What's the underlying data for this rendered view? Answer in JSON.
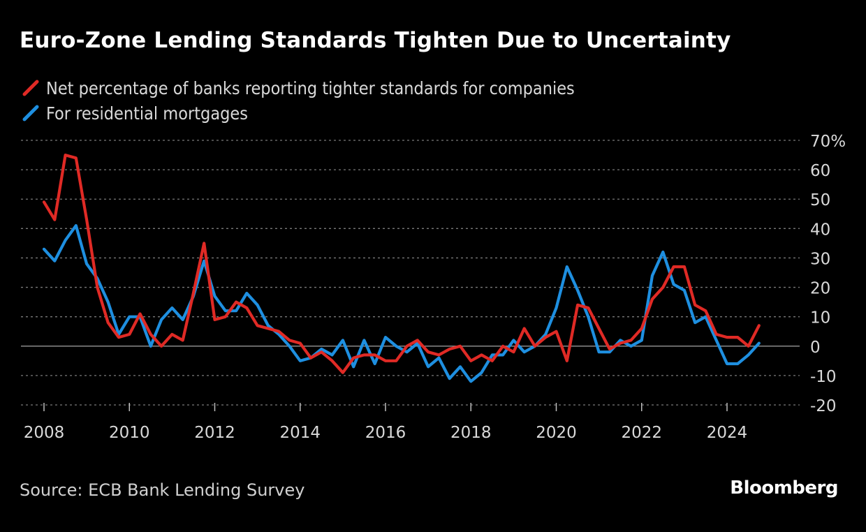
{
  "colors": {
    "background": "#000000",
    "red": "#e02a25",
    "blue": "#1e8fe0",
    "grid": "#7a7a7a",
    "text": "#d9d9d9"
  },
  "source": "Source: ECB Bank Lending Survey",
  "brand": "Bloomberg",
  "chart_data": {
    "type": "line",
    "title": "Euro-Zone Lending Standards Tighten Due to Uncertainty",
    "xlabel": "",
    "ylabel": "",
    "ylim": [
      -20,
      70
    ],
    "xlim": [
      2008,
      2025
    ],
    "y_ticks": [
      70,
      60,
      50,
      40,
      30,
      20,
      10,
      0,
      -10,
      -20
    ],
    "y_tick_labels": [
      "70%",
      "60",
      "50",
      "40",
      "30",
      "20",
      "10",
      "0",
      "-10",
      "-20"
    ],
    "x_ticks": [
      2008,
      2010,
      2012,
      2014,
      2016,
      2018,
      2020,
      2022,
      2024
    ],
    "x_tick_labels": [
      "2008",
      "2010",
      "2012",
      "2014",
      "2016",
      "2018",
      "2020",
      "2022",
      "2024"
    ],
    "grid": true,
    "legend_position": "top-left",
    "series": [
      {
        "name": "Net percentage of banks reporting tighter standards for companies",
        "color": "#e02a25",
        "x": [
          2008.0,
          2008.25,
          2008.5,
          2008.75,
          2009.0,
          2009.25,
          2009.5,
          2009.75,
          2010.0,
          2010.25,
          2010.5,
          2010.75,
          2011.0,
          2011.25,
          2011.5,
          2011.75,
          2012.0,
          2012.25,
          2012.5,
          2012.75,
          2013.0,
          2013.25,
          2013.5,
          2013.75,
          2014.0,
          2014.25,
          2014.5,
          2014.75,
          2015.0,
          2015.25,
          2015.5,
          2015.75,
          2016.0,
          2016.25,
          2016.5,
          2016.75,
          2017.0,
          2017.25,
          2017.5,
          2017.75,
          2018.0,
          2018.25,
          2018.5,
          2018.75,
          2019.0,
          2019.25,
          2019.5,
          2019.75,
          2020.0,
          2020.25,
          2020.5,
          2020.75,
          2021.0,
          2021.25,
          2021.5,
          2021.75,
          2022.0,
          2022.25,
          2022.5,
          2022.75,
          2023.0,
          2023.25,
          2023.5,
          2023.75,
          2024.0,
          2024.25,
          2024.5,
          2024.75
        ],
        "values": [
          49,
          43,
          65,
          64,
          43,
          20,
          8,
          3,
          4,
          11,
          4,
          0,
          4,
          2,
          18,
          35,
          9,
          10,
          15,
          13,
          7,
          6,
          5,
          2,
          1,
          -4,
          -2,
          -5,
          -9,
          -4,
          -3,
          -3,
          -5,
          -5,
          0,
          2,
          -2,
          -3,
          -1,
          0,
          -5,
          -3,
          -5,
          0,
          -2,
          6,
          0,
          3,
          5,
          -5,
          14,
          13,
          6,
          -1,
          1,
          2,
          6,
          16,
          20,
          27,
          27,
          14,
          12,
          4,
          3,
          3,
          0,
          7
        ]
      },
      {
        "name": "For residential mortgages",
        "color": "#1e8fe0",
        "x": [
          2008.0,
          2008.25,
          2008.5,
          2008.75,
          2009.0,
          2009.25,
          2009.5,
          2009.75,
          2010.0,
          2010.25,
          2010.5,
          2010.75,
          2011.0,
          2011.25,
          2011.5,
          2011.75,
          2012.0,
          2012.25,
          2012.5,
          2012.75,
          2013.0,
          2013.25,
          2013.5,
          2013.75,
          2014.0,
          2014.25,
          2014.5,
          2014.75,
          2015.0,
          2015.25,
          2015.5,
          2015.75,
          2016.0,
          2016.25,
          2016.5,
          2016.75,
          2017.0,
          2017.25,
          2017.5,
          2017.75,
          2018.0,
          2018.25,
          2018.5,
          2018.75,
          2019.0,
          2019.25,
          2019.5,
          2019.75,
          2020.0,
          2020.25,
          2020.5,
          2020.75,
          2021.0,
          2021.25,
          2021.5,
          2021.75,
          2022.0,
          2022.25,
          2022.5,
          2022.75,
          2023.0,
          2023.25,
          2023.5,
          2023.75,
          2024.0,
          2024.25,
          2024.5,
          2024.75
        ],
        "values": [
          33,
          29,
          36,
          41,
          28,
          23,
          15,
          4,
          10,
          10,
          0,
          9,
          13,
          9,
          17,
          29,
          17,
          12,
          12,
          18,
          14,
          7,
          4,
          0,
          -5,
          -4,
          -1,
          -3,
          2,
          -7,
          2,
          -6,
          3,
          0,
          -2,
          1,
          -7,
          -4,
          -11,
          -7,
          -12,
          -9,
          -3,
          -3,
          2,
          -2,
          0,
          4,
          13,
          27,
          19,
          10,
          -2,
          -2,
          2,
          0,
          2,
          24,
          32,
          21,
          19,
          8,
          10,
          2,
          -6,
          -6,
          -3,
          1
        ]
      }
    ]
  }
}
